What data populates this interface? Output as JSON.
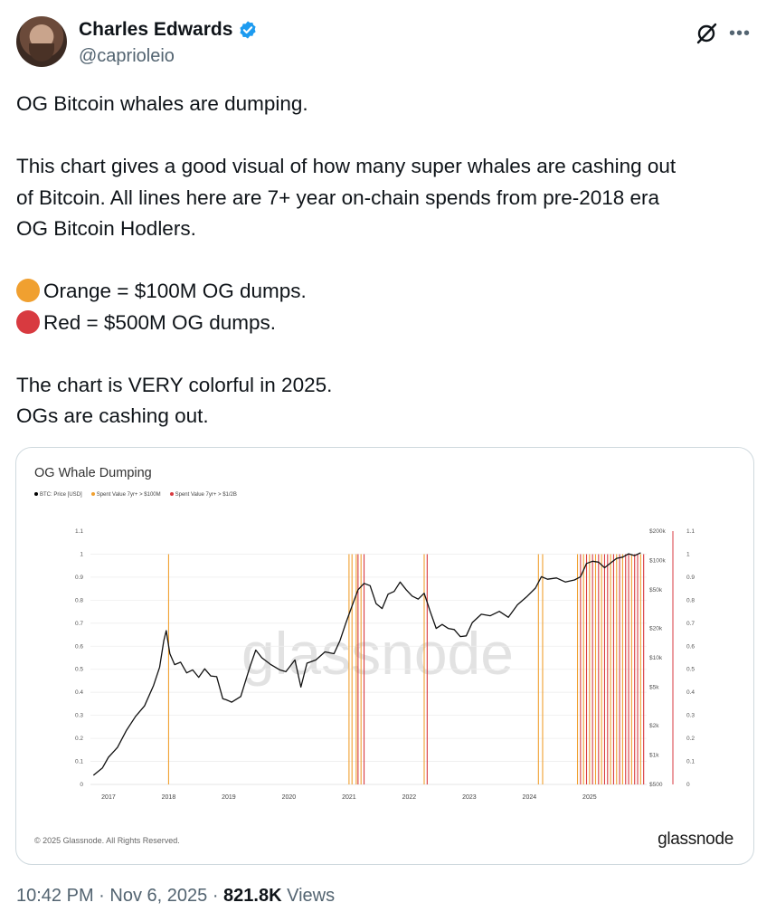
{
  "author": {
    "name": "Charles Edwards",
    "handle": "@caprioleio"
  },
  "tweet": {
    "line1": "OG Bitcoin whales are dumping.",
    "line2": "This chart gives a good visual of how many super whales are cashing out",
    "line3": "of Bitcoin. All lines here are 7+ year on-chain spends from pre-2018 era",
    "line4": "OG Bitcoin Hodlers.",
    "orange_text": "Orange = $100M OG dumps.",
    "red_text": "Red = $500M OG dumps.",
    "line7": "The chart is VERY colorful in 2025.",
    "line8": "OGs are cashing out."
  },
  "colors": {
    "orange_dot": "#f0a030",
    "red_dot": "#d83a40",
    "verified": "#1d9bf0"
  },
  "footer": {
    "time": "10:42 PM",
    "date": "Nov 6, 2025",
    "views": "821.8K",
    "views_label": "Views"
  },
  "chart_data": {
    "type": "line",
    "title": "OG Whale Dumping",
    "watermark": "glassnode",
    "copyright": "© 2025 Glassnode. All Rights Reserved.",
    "brand": "glassnode",
    "legend": [
      "BTC: Price [USD]",
      "Spent Value 7yr+ > $100M",
      "Spent Value 7yr+ > $1/2B"
    ],
    "x_ticks": [
      "2017",
      "2018",
      "2019",
      "2020",
      "2021",
      "2022",
      "2023",
      "2024",
      "2025"
    ],
    "left_ticks": [
      "1.1",
      "1",
      "0.9",
      "0.8",
      "0.7",
      "0.6",
      "0.5",
      "0.4",
      "0.3",
      "0.2",
      "0.1",
      "0"
    ],
    "right_ticks": [
      "1.1",
      "1",
      "0.9",
      "0.8",
      "0.7",
      "0.6",
      "0.5",
      "0.4",
      "0.3",
      "0.2",
      "0.1",
      "0"
    ],
    "price_ticks": [
      "$200k",
      "$100k",
      "$50k",
      "$20k",
      "$10k",
      "$5k",
      "$2k",
      "$1k",
      "$500"
    ],
    "price_tick_values": [
      200000,
      100000,
      50000,
      20000,
      10000,
      5000,
      2000,
      1000,
      500
    ],
    "x_range": [
      2016.7,
      2025.95
    ],
    "price_range_log": [
      500,
      200000
    ],
    "btc_price": {
      "x": [
        2016.75,
        2016.9,
        2017.0,
        2017.15,
        2017.3,
        2017.45,
        2017.6,
        2017.75,
        2017.85,
        2017.92,
        2017.96,
        2018.02,
        2018.1,
        2018.2,
        2018.3,
        2018.4,
        2018.5,
        2018.6,
        2018.7,
        2018.8,
        2018.9,
        2018.96,
        2019.05,
        2019.2,
        2019.35,
        2019.45,
        2019.55,
        2019.7,
        2019.85,
        2019.95,
        2020.1,
        2020.2,
        2020.3,
        2020.45,
        2020.6,
        2020.75,
        2020.85,
        2020.95,
        2021.05,
        2021.15,
        2021.25,
        2021.35,
        2021.45,
        2021.55,
        2021.65,
        2021.75,
        2021.85,
        2021.95,
        2022.05,
        2022.15,
        2022.25,
        2022.35,
        2022.45,
        2022.55,
        2022.65,
        2022.75,
        2022.85,
        2022.95,
        2023.05,
        2023.2,
        2023.35,
        2023.5,
        2023.65,
        2023.8,
        2023.95,
        2024.1,
        2024.2,
        2024.3,
        2024.45,
        2024.6,
        2024.75,
        2024.85,
        2024.95,
        2025.05,
        2025.15,
        2025.25,
        2025.35,
        2025.45,
        2025.55,
        2025.65,
        2025.75,
        2025.85
      ],
      "y": [
        620,
        740,
        950,
        1200,
        1800,
        2500,
        3200,
        5200,
        8000,
        15000,
        19000,
        11000,
        8500,
        9000,
        7000,
        7500,
        6300,
        7700,
        6500,
        6400,
        3800,
        3700,
        3500,
        4000,
        8000,
        12000,
        10000,
        8500,
        7500,
        7200,
        9500,
        5000,
        8800,
        9500,
        11500,
        11000,
        15000,
        23000,
        34000,
        50000,
        58000,
        55000,
        36000,
        32000,
        45000,
        48000,
        60000,
        50000,
        43000,
        40000,
        46000,
        30000,
        20000,
        22000,
        20000,
        19500,
        16500,
        16800,
        23000,
        28000,
        27000,
        30000,
        26000,
        35000,
        42000,
        52000,
        68000,
        64000,
        66000,
        60000,
        63000,
        68000,
        93000,
        98000,
        96000,
        84000,
        94000,
        105000,
        108000,
        117000,
        112000,
        120000
      ]
    },
    "spend_100m_x": [
      2018.0,
      2021.0,
      2021.05,
      2021.12,
      2021.2,
      2022.25,
      2024.15,
      2024.22,
      2024.8,
      2024.9,
      2025.0,
      2025.1,
      2025.2,
      2025.35,
      2025.45,
      2025.55,
      2025.7,
      2025.85
    ],
    "spend_500m_x": [
      2021.15,
      2021.25,
      2022.3,
      2024.85,
      2024.95,
      2025.05,
      2025.15,
      2025.25,
      2025.3,
      2025.4,
      2025.5,
      2025.6,
      2025.65,
      2025.75,
      2025.8,
      2025.9
    ]
  }
}
